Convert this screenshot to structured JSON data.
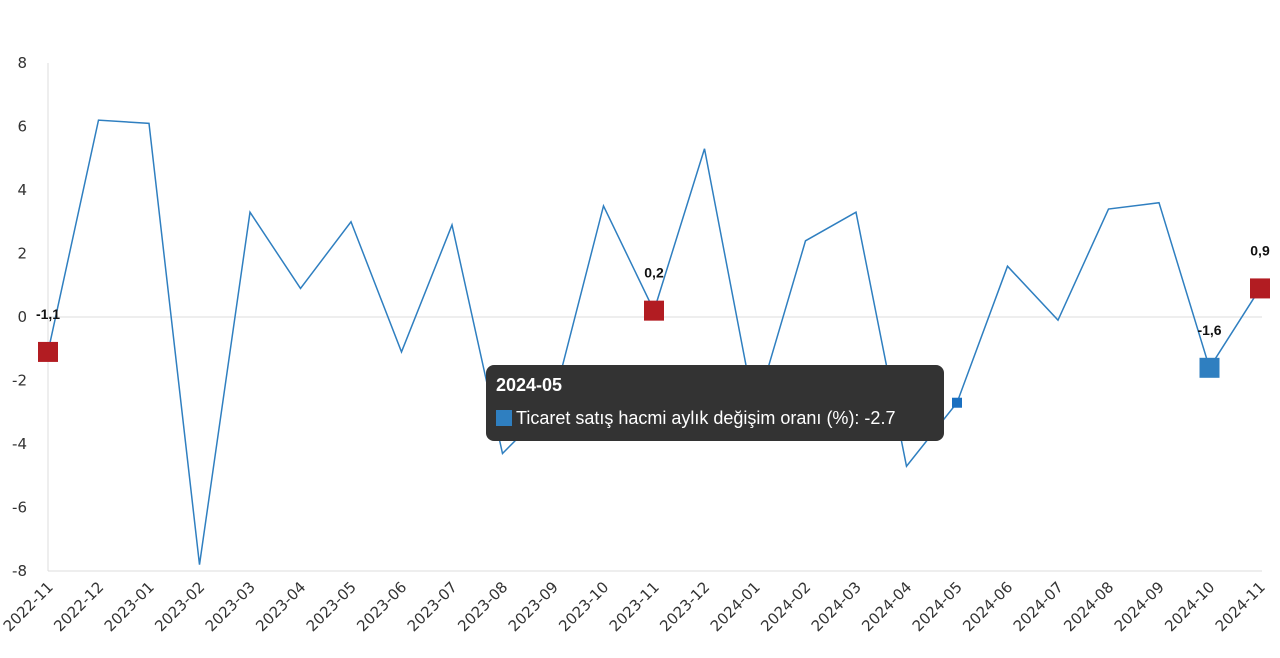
{
  "chart_data": {
    "type": "line",
    "categories": [
      "2022-11",
      "2022-12",
      "2023-01",
      "2023-02",
      "2023-03",
      "2023-04",
      "2023-05",
      "2023-06",
      "2023-07",
      "2023-08",
      "2023-09",
      "2023-10",
      "2023-11",
      "2023-12",
      "2024-01",
      "2024-02",
      "2024-03",
      "2024-04",
      "2024-05",
      "2024-06",
      "2024-07",
      "2024-08",
      "2024-09",
      "2024-10",
      "2024-11"
    ],
    "series": [
      {
        "name": "Ticaret satış hacmi aylık değişim oranı (%)",
        "values": [
          -1.1,
          6.2,
          6.1,
          -7.8,
          3.3,
          0.9,
          3.0,
          -1.1,
          2.9,
          -4.3,
          -2.7,
          3.5,
          0.2,
          5.3,
          -3.0,
          2.4,
          3.3,
          -4.7,
          -2.7,
          1.6,
          -0.1,
          3.4,
          3.6,
          -1.6,
          0.9
        ],
        "color": "#2f7fc0"
      }
    ],
    "highlighted_points": [
      {
        "category": "2022-11",
        "label": "-1,1",
        "color": "#b21c22"
      },
      {
        "category": "2023-11",
        "label": "0,2",
        "color": "#b21c22"
      },
      {
        "category": "2024-10",
        "label": "-1,6",
        "color": "#2f7fc0"
      },
      {
        "category": "2024-11",
        "label": "0,9",
        "color": "#b21c22"
      }
    ],
    "yticks": [
      "8",
      "6",
      "4",
      "2",
      "0",
      "-2",
      "-4",
      "-6",
      "-8"
    ],
    "ylim": [
      -8,
      8
    ],
    "grid": "zero-line only",
    "title": "",
    "xlabel": "",
    "ylabel": ""
  },
  "tooltip": {
    "title": "2024-05",
    "text": "Ticaret satış hacmi aylık değişim oranı (%): -2.7",
    "category": "2024-05",
    "swatch_color": "#2f7fc0"
  }
}
